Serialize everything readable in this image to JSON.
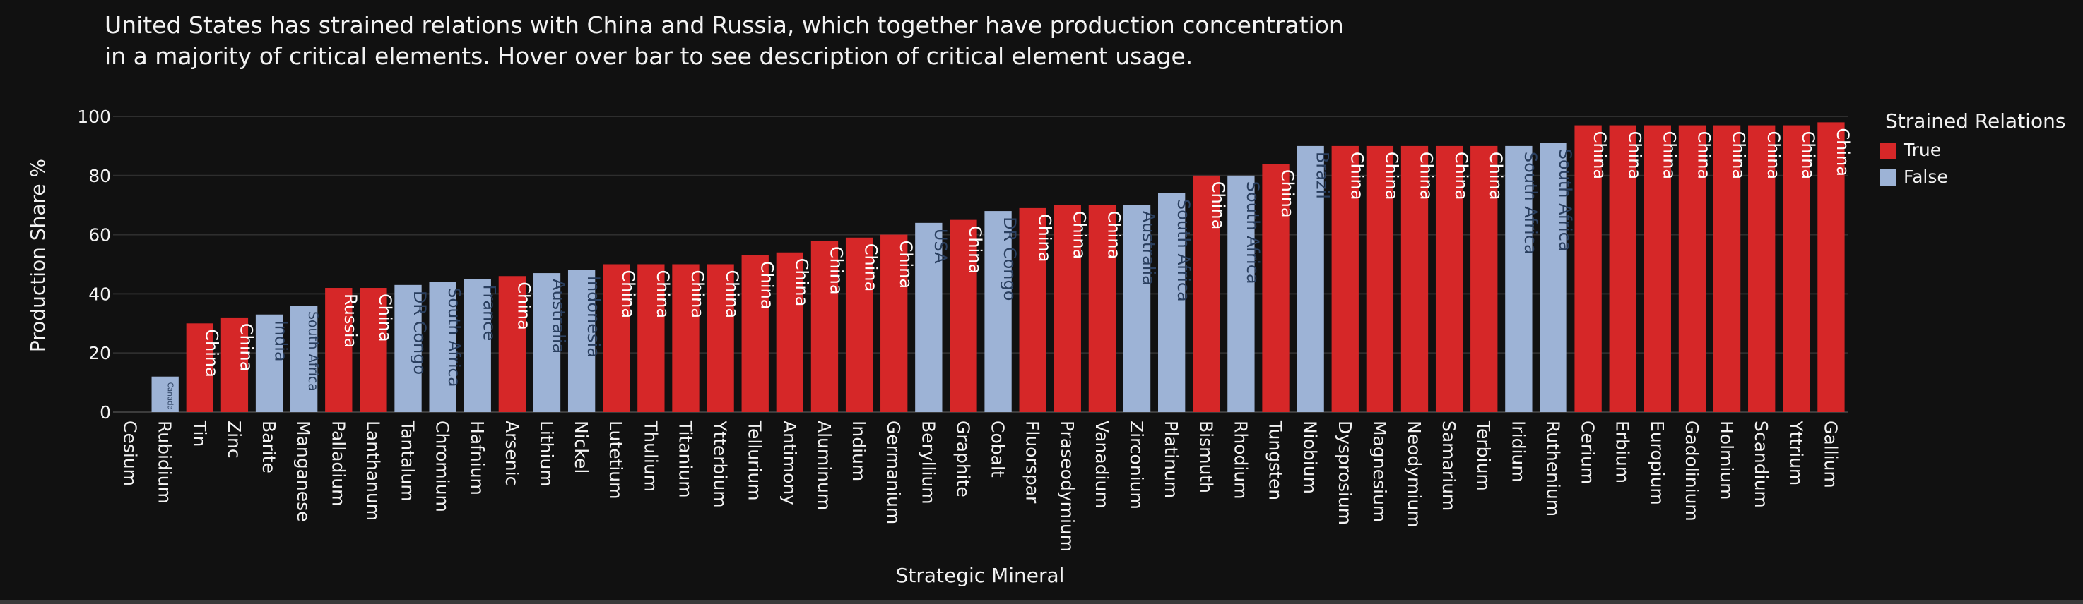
{
  "title": "United States has strained relations with China and Russia, which together have production concentration\nin a majority of critical elements. Hover over bar to see description of critical element usage.",
  "legend": {
    "title": "Strained Relations",
    "items": [
      {
        "label": "True",
        "color": "#d62728"
      },
      {
        "label": "False",
        "color": "#9db3d6"
      }
    ]
  },
  "chart_data": {
    "type": "bar",
    "xlabel": "Strategic Mineral",
    "ylabel": "Production Share %",
    "ylim": [
      0,
      100
    ],
    "yticks": [
      0,
      20,
      40,
      60,
      80,
      100
    ],
    "grid": true,
    "legend_position": "top-right",
    "bars": [
      {
        "category": "Cesium",
        "value": 0,
        "country": "",
        "strained": false
      },
      {
        "category": "Rubidium",
        "value": 12,
        "country": "Canada",
        "strained": false
      },
      {
        "category": "Tin",
        "value": 30,
        "country": "China",
        "strained": true
      },
      {
        "category": "Zinc",
        "value": 32,
        "country": "China",
        "strained": true
      },
      {
        "category": "Barite",
        "value": 33,
        "country": "India",
        "strained": false
      },
      {
        "category": "Manganese",
        "value": 36,
        "country": "South Africa",
        "strained": false
      },
      {
        "category": "Palladium",
        "value": 42,
        "country": "Russia",
        "strained": true
      },
      {
        "category": "Lanthanum",
        "value": 42,
        "country": "China",
        "strained": true
      },
      {
        "category": "Tantalum",
        "value": 43,
        "country": "DR Congo",
        "strained": false
      },
      {
        "category": "Chromium",
        "value": 44,
        "country": "South Africa",
        "strained": false
      },
      {
        "category": "Hafnium",
        "value": 45,
        "country": "France",
        "strained": false
      },
      {
        "category": "Arsenic",
        "value": 46,
        "country": "China",
        "strained": true
      },
      {
        "category": "Lithium",
        "value": 47,
        "country": "Australia",
        "strained": false
      },
      {
        "category": "Nickel",
        "value": 48,
        "country": "Indonesia",
        "strained": false
      },
      {
        "category": "Lutetium",
        "value": 50,
        "country": "China",
        "strained": true
      },
      {
        "category": "Thulium",
        "value": 50,
        "country": "China",
        "strained": true
      },
      {
        "category": "Titanium",
        "value": 50,
        "country": "China",
        "strained": true
      },
      {
        "category": "Ytterbium",
        "value": 50,
        "country": "China",
        "strained": true
      },
      {
        "category": "Tellurium",
        "value": 53,
        "country": "China",
        "strained": true
      },
      {
        "category": "Antimony",
        "value": 54,
        "country": "China",
        "strained": true
      },
      {
        "category": "Aluminum",
        "value": 58,
        "country": "China",
        "strained": true
      },
      {
        "category": "Indium",
        "value": 59,
        "country": "China",
        "strained": true
      },
      {
        "category": "Germanium",
        "value": 60,
        "country": "China",
        "strained": true
      },
      {
        "category": "Beryllium",
        "value": 64,
        "country": "USA",
        "strained": false
      },
      {
        "category": "Graphite",
        "value": 65,
        "country": "China",
        "strained": true
      },
      {
        "category": "Cobalt",
        "value": 68,
        "country": "DR Congo",
        "strained": false
      },
      {
        "category": "Fluorspar",
        "value": 69,
        "country": "China",
        "strained": true
      },
      {
        "category": "Praseodymium",
        "value": 70,
        "country": "China",
        "strained": true
      },
      {
        "category": "Vanadium",
        "value": 70,
        "country": "China",
        "strained": true
      },
      {
        "category": "Zirconium",
        "value": 70,
        "country": "Australia",
        "strained": false
      },
      {
        "category": "Platinum",
        "value": 74,
        "country": "South Africa",
        "strained": false
      },
      {
        "category": "Bismuth",
        "value": 80,
        "country": "China",
        "strained": true
      },
      {
        "category": "Rhodium",
        "value": 80,
        "country": "South Africa",
        "strained": false
      },
      {
        "category": "Tungsten",
        "value": 84,
        "country": "China",
        "strained": true
      },
      {
        "category": "Niobium",
        "value": 90,
        "country": "Brazil",
        "strained": false
      },
      {
        "category": "Dysprosium",
        "value": 90,
        "country": "China",
        "strained": true
      },
      {
        "category": "Magnesium",
        "value": 90,
        "country": "China",
        "strained": true
      },
      {
        "category": "Neodymium",
        "value": 90,
        "country": "China",
        "strained": true
      },
      {
        "category": "Samarium",
        "value": 90,
        "country": "China",
        "strained": true
      },
      {
        "category": "Terbium",
        "value": 90,
        "country": "China",
        "strained": true
      },
      {
        "category": "Iridium",
        "value": 90,
        "country": "South Africa",
        "strained": false
      },
      {
        "category": "Ruthenium",
        "value": 91,
        "country": "South Africa",
        "strained": false
      },
      {
        "category": "Cerium",
        "value": 97,
        "country": "China",
        "strained": true
      },
      {
        "category": "Erbium",
        "value": 97,
        "country": "China",
        "strained": true
      },
      {
        "category": "Europium",
        "value": 97,
        "country": "China",
        "strained": true
      },
      {
        "category": "Gadolinium",
        "value": 97,
        "country": "China",
        "strained": true
      },
      {
        "category": "Holmium",
        "value": 97,
        "country": "China",
        "strained": true
      },
      {
        "category": "Scandium",
        "value": 97,
        "country": "China",
        "strained": true
      },
      {
        "category": "Yttrium",
        "value": 97,
        "country": "China",
        "strained": true
      },
      {
        "category": "Gallium",
        "value": 98,
        "country": "China",
        "strained": true
      }
    ]
  }
}
